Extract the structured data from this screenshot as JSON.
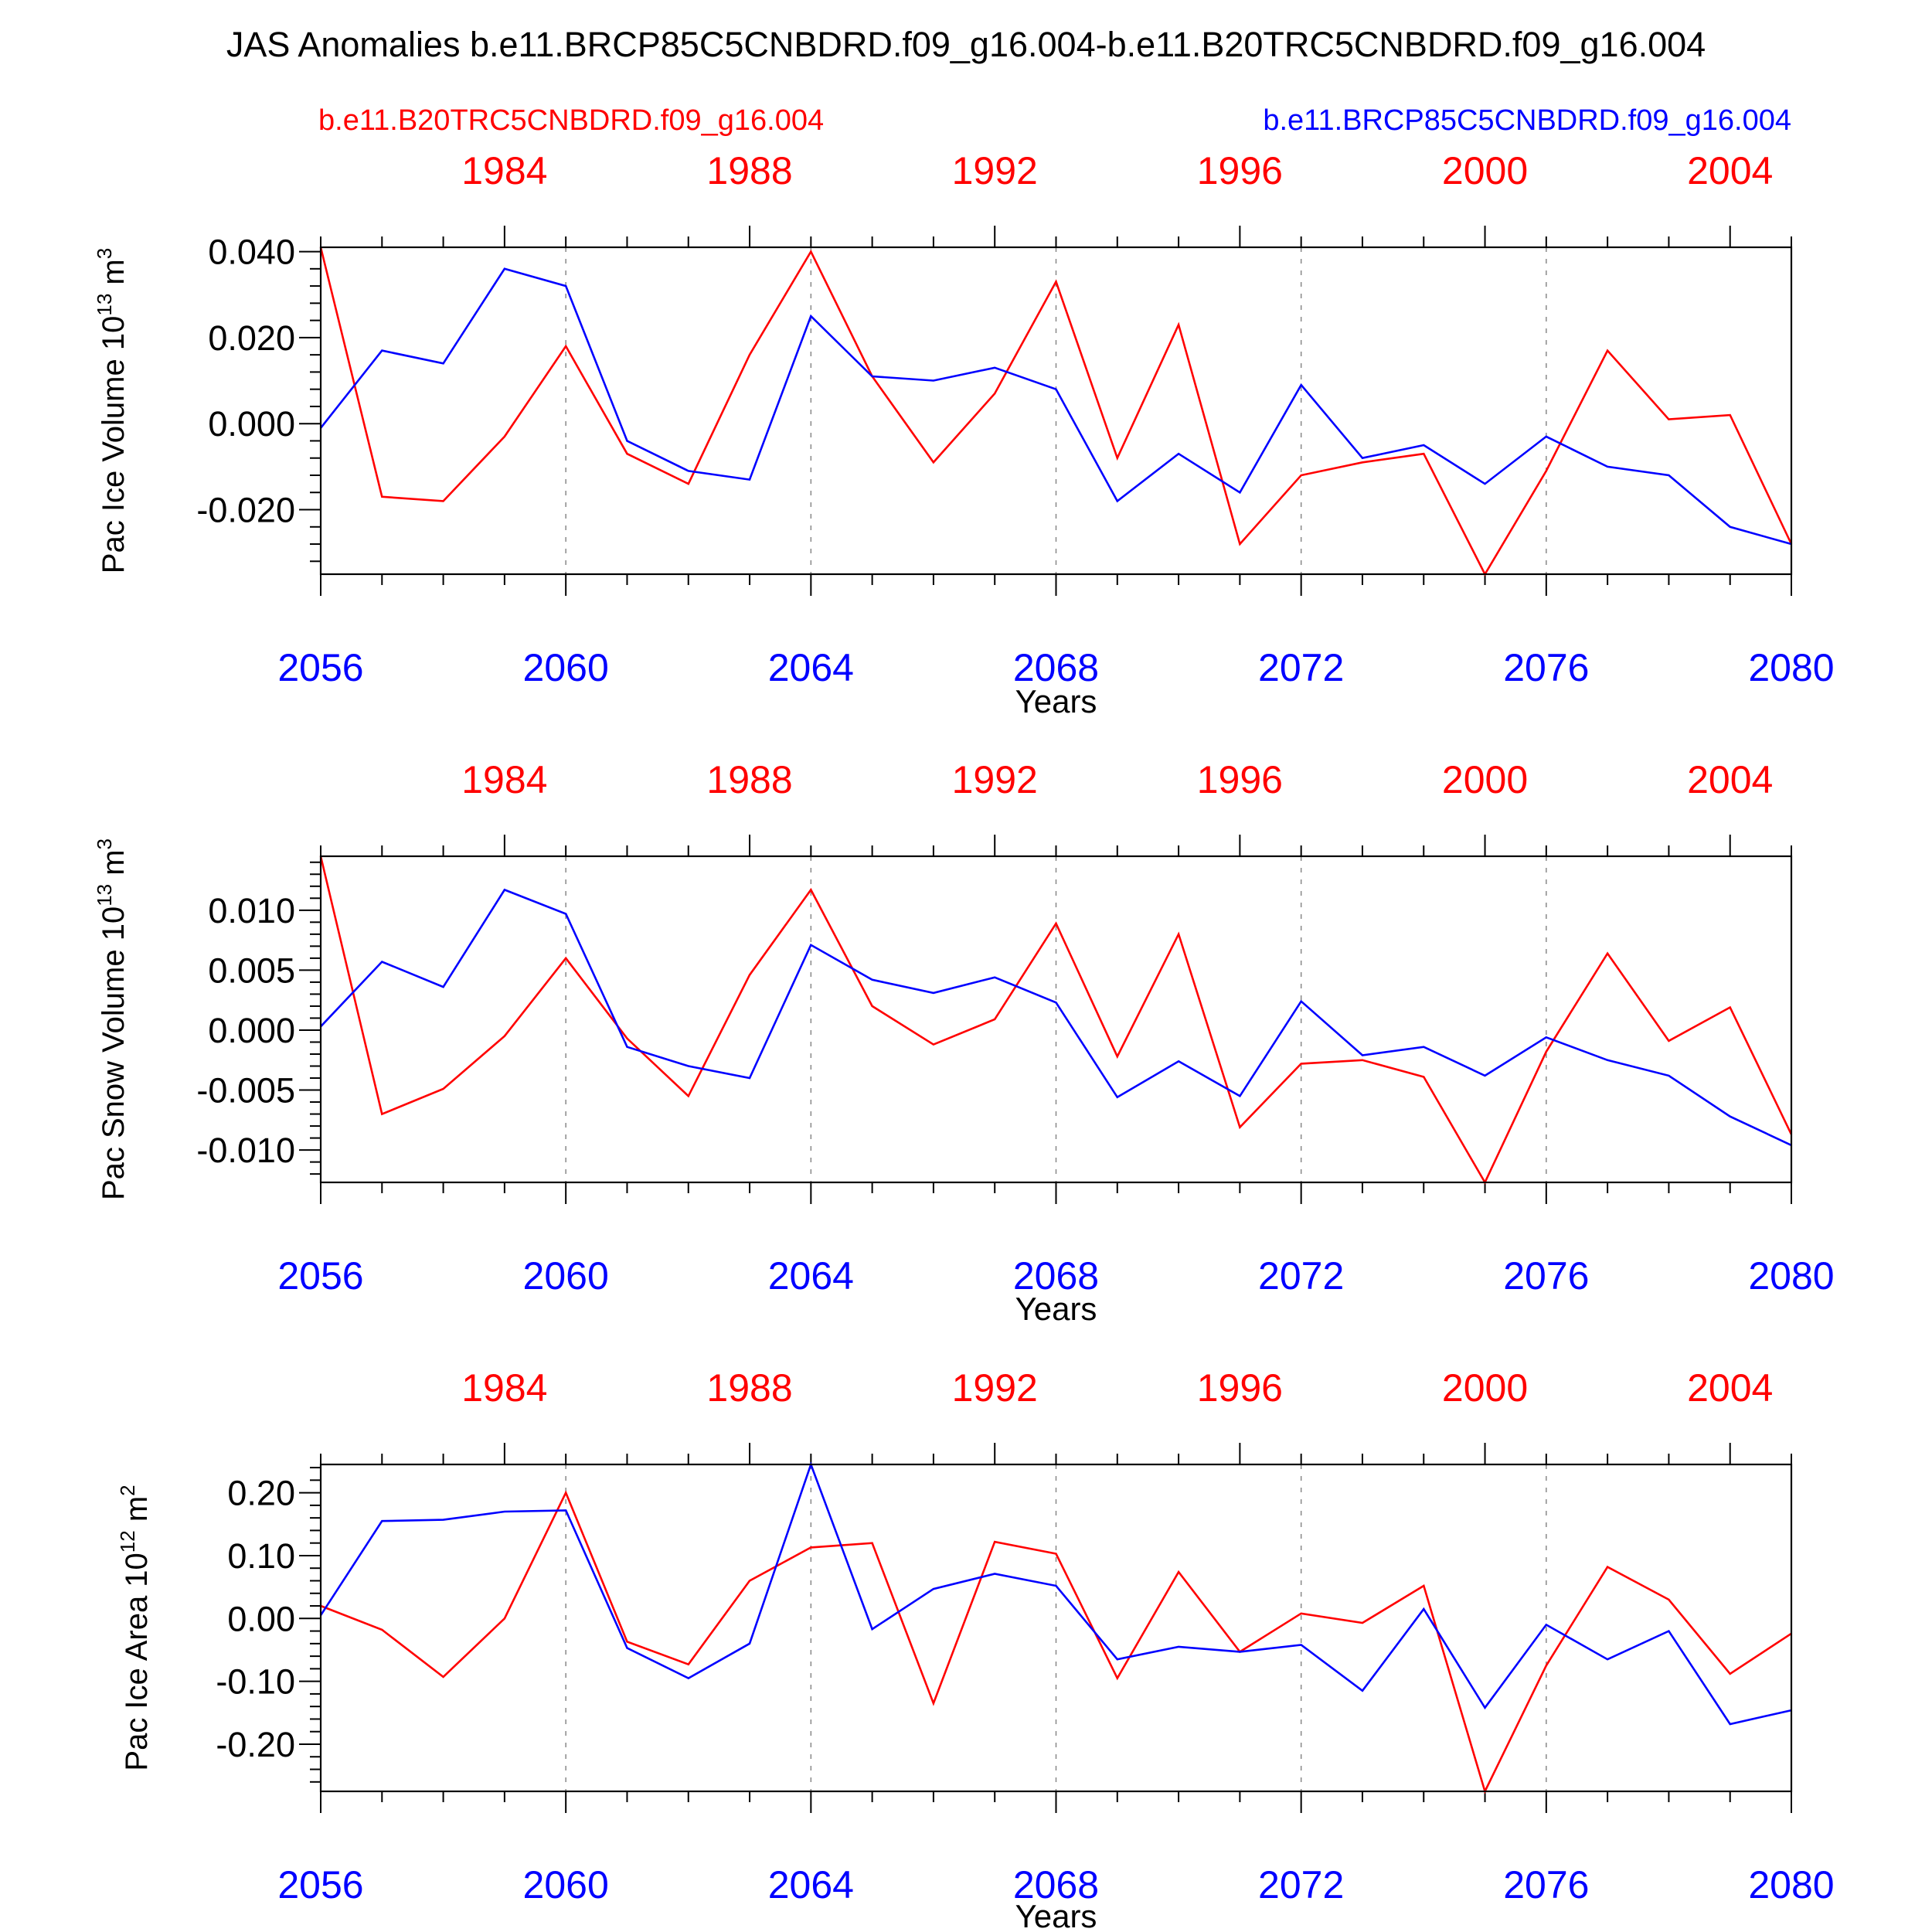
{
  "title": "JAS Anomalies b.e11.BRCP85C5CNBDRD.f09_g16.004-b.e11.B20TRC5CNBDRD.f09_g16.004",
  "legend": {
    "red_label": "b.e11.B20TRC5CNBDRD.f09_g16.004",
    "blue_label": "b.e11.BRCP85C5CNBDRD.f09_g16.004"
  },
  "colors": {
    "red": "#ff0000",
    "blue": "#0000ff",
    "axis": "#000000",
    "grid": "#888888"
  },
  "chart_data": [
    {
      "type": "line",
      "id": "ice-volume",
      "ylabel": "Pac Ice Volume 10",
      "ylabel_exp": "13",
      "ylabel_unit": "m",
      "ylabel_unit_exp": "3",
      "xlabel": "Years",
      "xlim": [
        2056,
        2080
      ],
      "ylim": [
        -0.035,
        0.041
      ],
      "yticks": [
        -0.02,
        0.0,
        0.02,
        0.04
      ],
      "ytick_labels": [
        "-0.020",
        "0.000",
        "0.020",
        "0.040"
      ],
      "xticks": [
        2056,
        2060,
        2064,
        2068,
        2072,
        2076,
        2080
      ],
      "xtick_labels": [
        "2056",
        "2060",
        "2064",
        "2068",
        "2072",
        "2076",
        "2080"
      ],
      "top_ticks_x": [
        2059,
        2063,
        2067,
        2071,
        2075,
        2079
      ],
      "top_tick_labels": [
        "1984",
        "1988",
        "1992",
        "1996",
        "2000",
        "2004"
      ],
      "x": [
        2056,
        2057,
        2058,
        2059,
        2060,
        2061,
        2062,
        2063,
        2064,
        2065,
        2066,
        2067,
        2068,
        2069,
        2070,
        2071,
        2072,
        2073,
        2074,
        2075,
        2076,
        2077,
        2078,
        2079,
        2080
      ],
      "series": [
        {
          "name": "b.e11.B20TRC5CNBDRD.f09_g16.004",
          "color": "red",
          "values": [
            0.041,
            -0.017,
            -0.018,
            -0.003,
            0.018,
            -0.007,
            -0.014,
            0.016,
            0.04,
            0.011,
            -0.009,
            0.007,
            0.033,
            -0.008,
            0.023,
            -0.028,
            -0.012,
            -0.009,
            -0.007,
            -0.035,
            -0.011,
            0.017,
            0.001,
            0.002,
            -0.028
          ]
        },
        {
          "name": "b.e11.BRCP85C5CNBDRD.f09_g16.004",
          "color": "blue",
          "values": [
            -0.001,
            0.017,
            0.014,
            0.036,
            0.032,
            -0.004,
            -0.011,
            -0.013,
            0.025,
            0.011,
            0.01,
            0.013,
            0.008,
            -0.018,
            -0.007,
            -0.016,
            0.009,
            -0.008,
            -0.005,
            -0.014,
            -0.003,
            -0.01,
            -0.012,
            -0.024,
            -0.028
          ]
        }
      ]
    },
    {
      "type": "line",
      "id": "snow-volume",
      "ylabel": "Pac Snow Volume 10",
      "ylabel_exp": "13",
      "ylabel_unit": "m",
      "ylabel_unit_exp": "3",
      "xlabel": "Years",
      "xlim": [
        2056,
        2080
      ],
      "ylim": [
        -0.0127,
        0.0145
      ],
      "yticks": [
        -0.01,
        -0.005,
        0.0,
        0.005,
        0.01
      ],
      "ytick_labels": [
        "-0.010",
        "-0.005",
        "0.000",
        "0.005",
        "0.010"
      ],
      "xticks": [
        2056,
        2060,
        2064,
        2068,
        2072,
        2076,
        2080
      ],
      "xtick_labels": [
        "2056",
        "2060",
        "2064",
        "2068",
        "2072",
        "2076",
        "2080"
      ],
      "top_ticks_x": [
        2059,
        2063,
        2067,
        2071,
        2075,
        2079
      ],
      "top_tick_labels": [
        "1984",
        "1988",
        "1992",
        "1996",
        "2000",
        "2004"
      ],
      "x": [
        2056,
        2057,
        2058,
        2059,
        2060,
        2061,
        2062,
        2063,
        2064,
        2065,
        2066,
        2067,
        2068,
        2069,
        2070,
        2071,
        2072,
        2073,
        2074,
        2075,
        2076,
        2077,
        2078,
        2079,
        2080
      ],
      "series": [
        {
          "name": "b.e11.B20TRC5CNBDRD.f09_g16.004",
          "color": "red",
          "values": [
            0.0145,
            -0.007,
            -0.0049,
            -0.0005,
            0.006,
            -0.0007,
            -0.0055,
            0.0046,
            0.0117,
            0.002,
            -0.0012,
            0.0009,
            0.0089,
            -0.0022,
            0.008,
            -0.0081,
            -0.0028,
            -0.0025,
            -0.0039,
            -0.0127,
            -0.0018,
            0.0064,
            -0.0009,
            0.0019,
            -0.0087
          ]
        },
        {
          "name": "b.e11.BRCP85C5CNBDRD.f09_g16.004",
          "color": "blue",
          "values": [
            0.0003,
            0.0057,
            0.0036,
            0.0117,
            0.0097,
            -0.0014,
            -0.003,
            -0.004,
            0.0071,
            0.0042,
            0.0031,
            0.0044,
            0.0023,
            -0.0056,
            -0.0026,
            -0.0055,
            0.0024,
            -0.0021,
            -0.0014,
            -0.0038,
            -0.0006,
            -0.0025,
            -0.0038,
            -0.0072,
            -0.0096
          ]
        }
      ]
    },
    {
      "type": "line",
      "id": "ice-area",
      "ylabel": "Pac Ice Area 10",
      "ylabel_exp": "12",
      "ylabel_unit": "m",
      "ylabel_unit_exp": "2",
      "xlabel": "Years",
      "xlim": [
        2056,
        2080
      ],
      "ylim": [
        -0.275,
        0.245
      ],
      "yticks": [
        -0.2,
        -0.1,
        0.0,
        0.1,
        0.2
      ],
      "ytick_labels": [
        "-0.20",
        "-0.10",
        "0.00",
        "0.10",
        "0.20"
      ],
      "xticks": [
        2056,
        2060,
        2064,
        2068,
        2072,
        2076,
        2080
      ],
      "xtick_labels": [
        "2056",
        "2060",
        "2064",
        "2068",
        "2072",
        "2076",
        "2080"
      ],
      "top_ticks_x": [
        2059,
        2063,
        2067,
        2071,
        2075,
        2079
      ],
      "top_tick_labels": [
        "1984",
        "1988",
        "1992",
        "1996",
        "2000",
        "2004"
      ],
      "x": [
        2056,
        2057,
        2058,
        2059,
        2060,
        2061,
        2062,
        2063,
        2064,
        2065,
        2066,
        2067,
        2068,
        2069,
        2070,
        2071,
        2072,
        2073,
        2074,
        2075,
        2076,
        2077,
        2078,
        2079,
        2080
      ],
      "series": [
        {
          "name": "b.e11.B20TRC5CNBDRD.f09_g16.004",
          "color": "red",
          "values": [
            0.02,
            -0.018,
            -0.093,
            0.0,
            0.2,
            -0.037,
            -0.073,
            0.06,
            0.113,
            0.12,
            -0.135,
            0.122,
            0.103,
            -0.095,
            0.074,
            -0.053,
            0.008,
            -0.007,
            0.052,
            -0.275,
            -0.075,
            0.082,
            0.03,
            -0.088,
            -0.024
          ]
        },
        {
          "name": "b.e11.BRCP85C5CNBDRD.f09_g16.004",
          "color": "blue",
          "values": [
            0.005,
            0.155,
            0.157,
            0.17,
            0.172,
            -0.047,
            -0.095,
            -0.04,
            0.245,
            -0.017,
            0.047,
            0.071,
            0.052,
            -0.065,
            -0.045,
            -0.053,
            -0.042,
            -0.115,
            0.015,
            -0.142,
            -0.01,
            -0.065,
            -0.02,
            -0.168,
            -0.146
          ]
        }
      ]
    }
  ]
}
